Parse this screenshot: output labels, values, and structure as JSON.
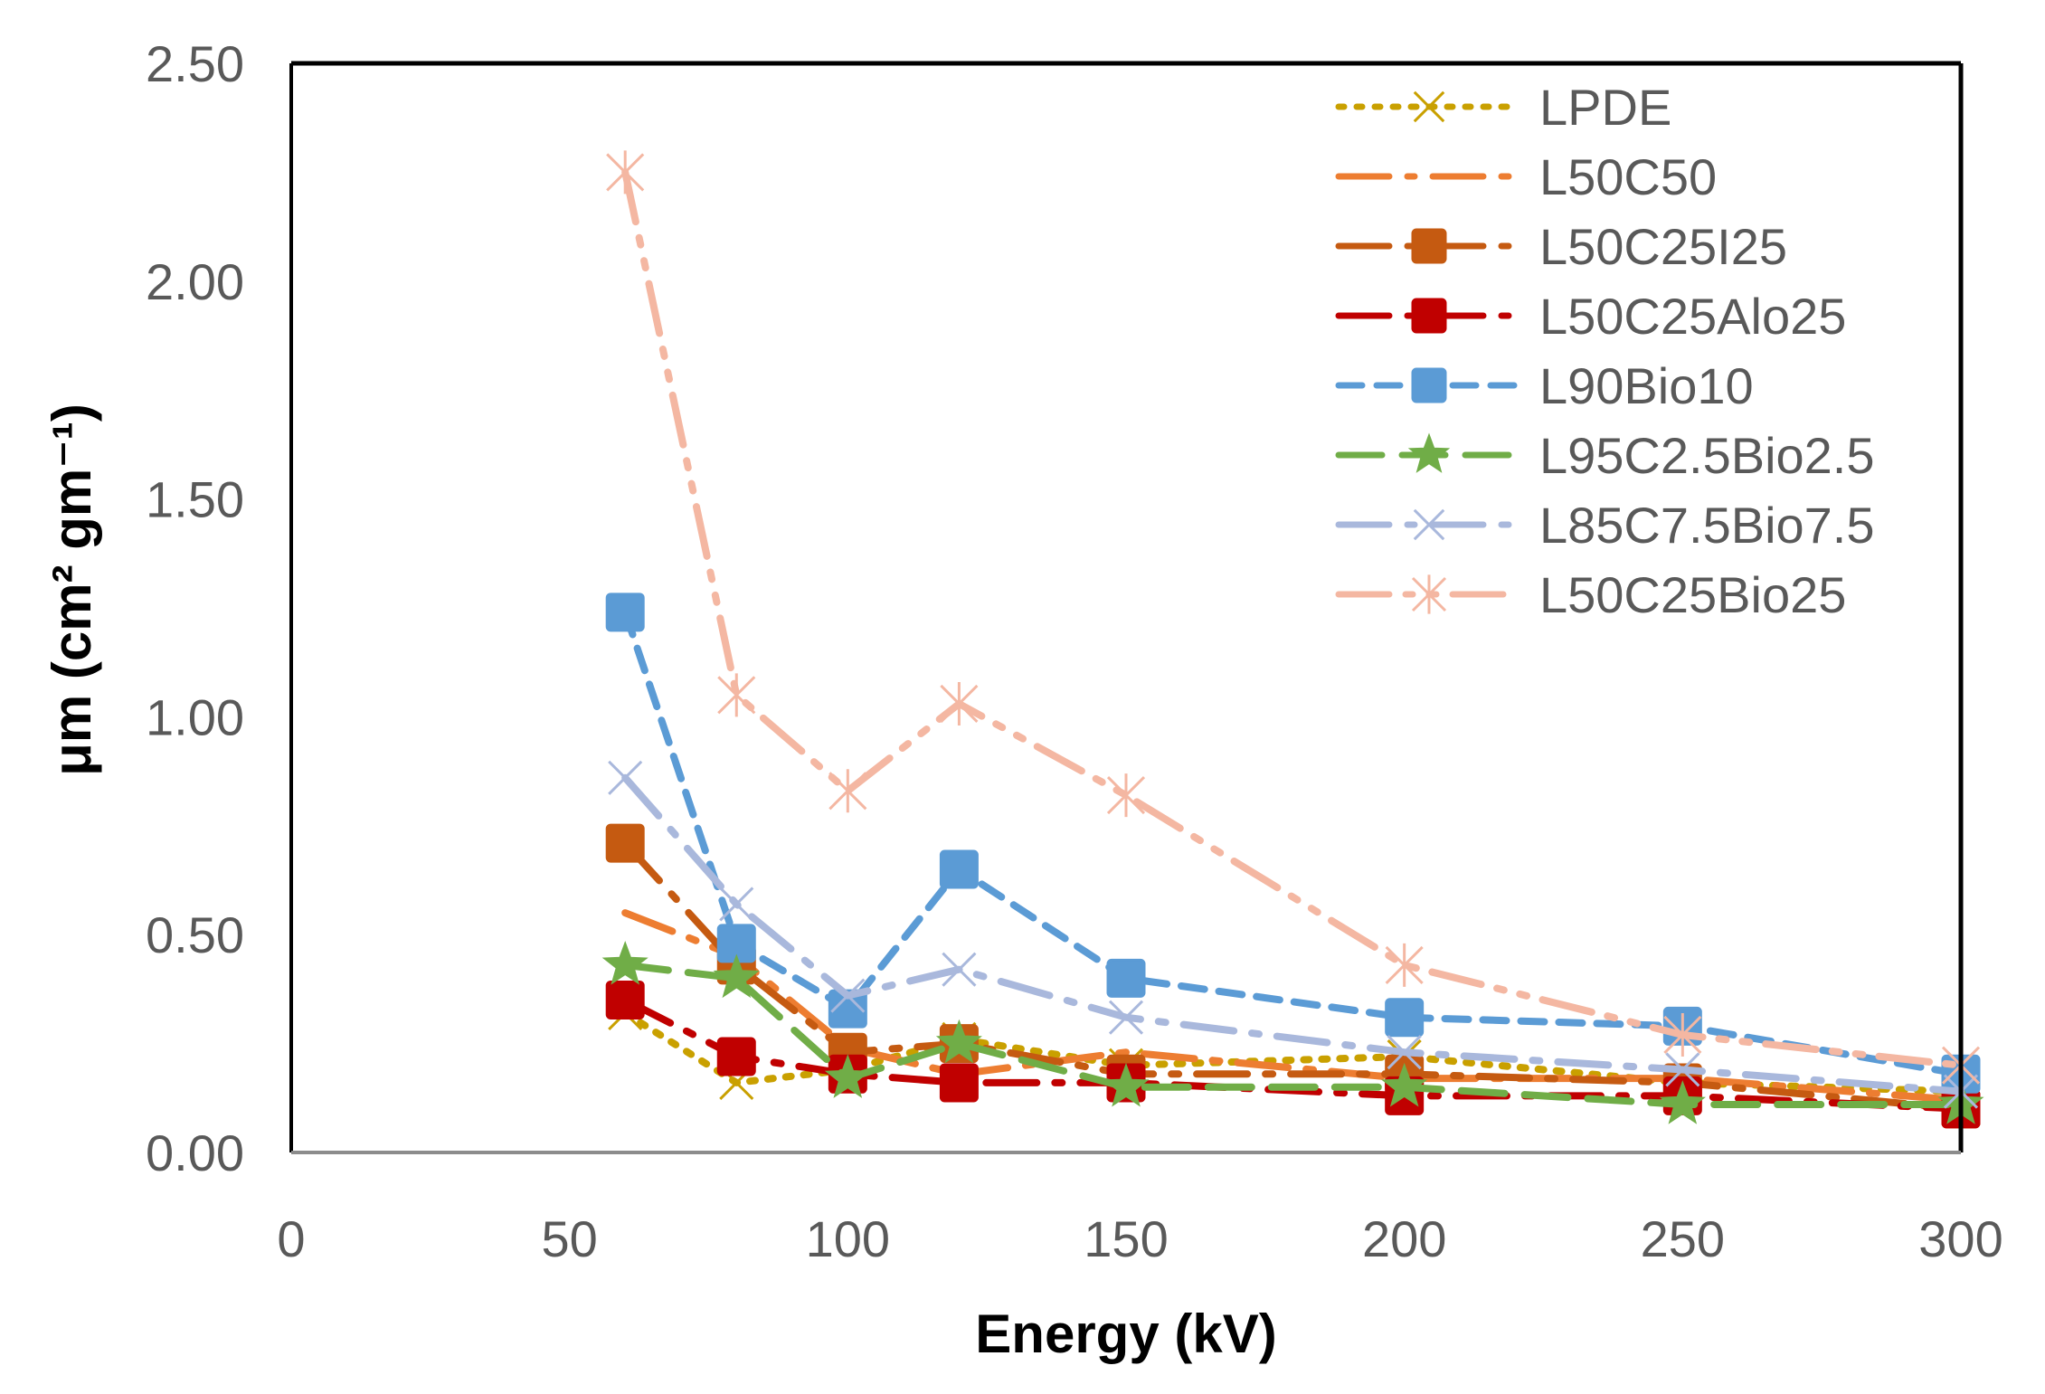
{
  "chart_data": {
    "type": "line",
    "title": "",
    "xlabel": "Energy (kV)",
    "ylabel": "μm  (cm² gm⁻¹)",
    "xlim": [
      0,
      300
    ],
    "ylim": [
      0,
      2.5
    ],
    "x_ticks": [
      "0",
      "50",
      "100",
      "150",
      "200",
      "250",
      "300"
    ],
    "y_ticks": [
      "0.00",
      "0.50",
      "1.00",
      "1.50",
      "2.00",
      "2.50"
    ],
    "grid": false,
    "legend_position": "top-right",
    "x": [
      60,
      80,
      100,
      120,
      150,
      200,
      250,
      300
    ],
    "series": [
      {
        "name": "LPDE",
        "color": "#C9A000",
        "marker": "x",
        "dash": "dot",
        "values": [
          0.32,
          0.16,
          0.19,
          0.26,
          0.2,
          0.22,
          0.16,
          0.14
        ]
      },
      {
        "name": "L50C50",
        "color": "#ED7D31",
        "marker": "none",
        "dash": "longdashdot",
        "values": [
          0.55,
          0.45,
          0.24,
          0.18,
          0.23,
          0.17,
          0.17,
          0.12
        ]
      },
      {
        "name": "L50C25I25",
        "color": "#C55A11",
        "marker": "square",
        "dash": "longdashdot",
        "values": [
          0.71,
          0.43,
          0.23,
          0.25,
          0.18,
          0.18,
          0.16,
          0.1
        ]
      },
      {
        "name": "L50C25Alo25",
        "color": "#C00000",
        "marker": "square",
        "dash": "longdashdot",
        "values": [
          0.35,
          0.22,
          0.18,
          0.16,
          0.16,
          0.13,
          0.13,
          0.1
        ]
      },
      {
        "name": "L90Bio10",
        "color": "#5B9BD5",
        "marker": "square",
        "dash": "dash",
        "values": [
          1.24,
          0.48,
          0.33,
          0.65,
          0.4,
          0.31,
          0.29,
          0.18
        ]
      },
      {
        "name": "L95C2.5Bio2.5",
        "color": "#70AD47",
        "marker": "star",
        "dash": "longdash",
        "values": [
          0.43,
          0.4,
          0.17,
          0.25,
          0.15,
          0.15,
          0.11,
          0.11
        ]
      },
      {
        "name": "L85C7.5Bio7.5",
        "color": "#A9B8DC",
        "marker": "x",
        "dash": "longdashdot",
        "values": [
          0.86,
          0.57,
          0.36,
          0.42,
          0.31,
          0.23,
          0.19,
          0.14
        ]
      },
      {
        "name": "L50C25Bio25",
        "color": "#F4B7A2",
        "marker": "asterisk",
        "dash": "longdashdotdot",
        "values": [
          2.25,
          1.05,
          0.83,
          1.03,
          0.82,
          0.43,
          0.27,
          0.2
        ]
      }
    ]
  }
}
